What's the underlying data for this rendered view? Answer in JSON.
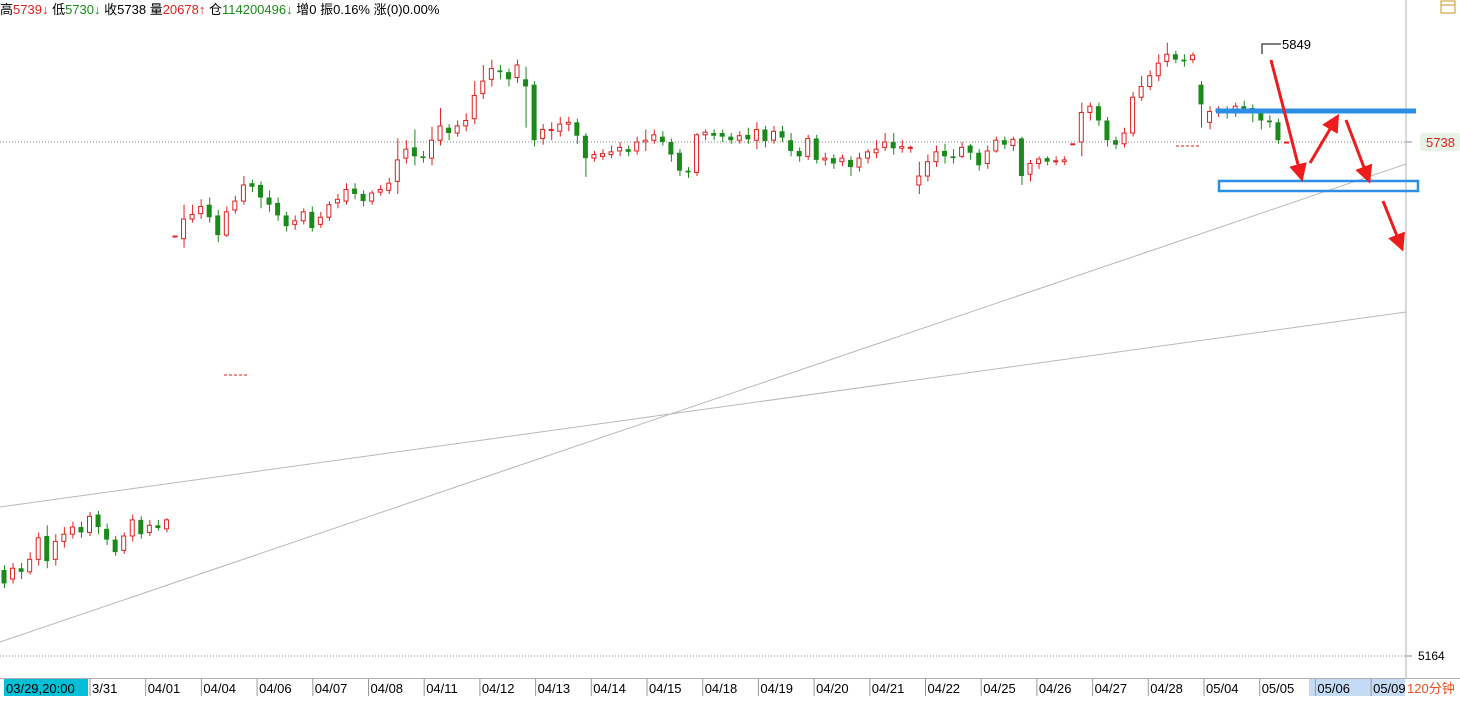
{
  "info_bar": {
    "high_label": "高",
    "high_value": "5739",
    "high_arrow": "↓",
    "low_label": "低",
    "low_value": "5730",
    "low_arrow": "↓",
    "close_label": "收",
    "close_value": "5738",
    "volume_label": "量",
    "volume_value": "20678",
    "volume_arrow": "↑",
    "oi_label": "仓",
    "oi_value": "114200496",
    "oi_arrow": "↓",
    "increase_label": "增",
    "increase_value": "0",
    "amplitude_label": "振",
    "amplitude_value": "0.16%",
    "change_label": "涨",
    "change_value": "(0)0.00%"
  },
  "period_label": "120分钟",
  "cursor_time_label": "03/29,20:00",
  "price_axis": {
    "current_price_label": "5738",
    "bottom_label": "5164"
  },
  "colors": {
    "up": "#e0201e",
    "down": "#1a8a1a",
    "annotation_blue": "#2b8fe6",
    "annotation_red": "#ee1c1c",
    "trendline": "#b8b8b8",
    "time_highlight": "#00c0d8",
    "period_text": "#e8501e"
  },
  "chart_data": {
    "type": "candlestick",
    "title": "",
    "peak_label": "5849",
    "y_axis_labels": [
      "5738",
      "5164"
    ],
    "x_axis_labels": [
      "3/31",
      "04/01",
      "04/04",
      "04/06",
      "04/07",
      "04/08",
      "04/11",
      "04/12",
      "04/13",
      "04/14",
      "04/15",
      "04/18",
      "04/19",
      "04/20",
      "04/21",
      "04/22",
      "04/25",
      "04/26",
      "04/27",
      "04/28",
      "05/04",
      "05/05",
      "05/06",
      "05/09"
    ],
    "reference_prices": {
      "last_close": 5738,
      "axis_min_label": 5164,
      "peak": 5849
    },
    "approx_ylim": [
      5164,
      5885
    ],
    "candles": [
      [
        5260,
        5245,
        5265,
        5240
      ],
      [
        5250,
        5262,
        5268,
        5245
      ],
      [
        5262,
        5258,
        5268,
        5250
      ],
      [
        5258,
        5272,
        5280,
        5255
      ],
      [
        5272,
        5296,
        5302,
        5265
      ],
      [
        5298,
        5270,
        5310,
        5262
      ],
      [
        5272,
        5292,
        5300,
        5265
      ],
      [
        5292,
        5300,
        5308,
        5285
      ],
      [
        5300,
        5308,
        5314,
        5295
      ],
      [
        5308,
        5302,
        5314,
        5296
      ],
      [
        5302,
        5320,
        5325,
        5298
      ],
      [
        5322,
        5308,
        5326,
        5300
      ],
      [
        5306,
        5294,
        5312,
        5288
      ],
      [
        5294,
        5280,
        5298,
        5276
      ],
      [
        5282,
        5298,
        5302,
        5278
      ],
      [
        5298,
        5316,
        5322,
        5292
      ],
      [
        5316,
        5300,
        5320,
        5295
      ],
      [
        5302,
        5310,
        5316,
        5298
      ],
      [
        5310,
        5307,
        5316,
        5304
      ],
      [
        5306,
        5316,
        5318,
        5302
      ],
      [
        5633,
        5633,
        5633,
        5633
      ],
      [
        5630,
        5652,
        5668,
        5620
      ],
      [
        5652,
        5657,
        5668,
        5648
      ],
      [
        5658,
        5666,
        5674,
        5652
      ],
      [
        5668,
        5654,
        5676,
        5648
      ],
      [
        5656,
        5634,
        5662,
        5626
      ],
      [
        5634,
        5660,
        5666,
        5632
      ],
      [
        5662,
        5672,
        5678,
        5658
      ],
      [
        5672,
        5690,
        5700,
        5668
      ],
      [
        5692,
        5688,
        5696,
        5682
      ],
      [
        5690,
        5676,
        5694,
        5664
      ],
      [
        5676,
        5668,
        5684,
        5660
      ],
      [
        5670,
        5656,
        5676,
        5650
      ],
      [
        5656,
        5644,
        5660,
        5638
      ],
      [
        5646,
        5650,
        5656,
        5640
      ],
      [
        5650,
        5660,
        5664,
        5646
      ],
      [
        5660,
        5642,
        5666,
        5638
      ],
      [
        5646,
        5654,
        5660,
        5642
      ],
      [
        5654,
        5668,
        5672,
        5650
      ],
      [
        5670,
        5674,
        5680,
        5664
      ],
      [
        5672,
        5685,
        5692,
        5668
      ],
      [
        5686,
        5680,
        5692,
        5674
      ],
      [
        5680,
        5672,
        5684,
        5666
      ],
      [
        5672,
        5681,
        5684,
        5668
      ],
      [
        5682,
        5685,
        5690,
        5678
      ],
      [
        5684,
        5692,
        5698,
        5680
      ],
      [
        5694,
        5718,
        5742,
        5680
      ],
      [
        5720,
        5730,
        5740,
        5714
      ],
      [
        5732,
        5722,
        5752,
        5712
      ],
      [
        5722,
        5720,
        5728,
        5715
      ],
      [
        5720,
        5740,
        5755,
        5712
      ],
      [
        5740,
        5756,
        5776,
        5734
      ],
      [
        5754,
        5748,
        5758,
        5740
      ],
      [
        5748,
        5756,
        5762,
        5744
      ],
      [
        5756,
        5762,
        5770,
        5750
      ],
      [
        5764,
        5790,
        5806,
        5758
      ],
      [
        5792,
        5806,
        5824,
        5786
      ],
      [
        5808,
        5820,
        5830,
        5800
      ],
      [
        5818,
        5816,
        5824,
        5808
      ],
      [
        5816,
        5808,
        5820,
        5800
      ],
      [
        5810,
        5824,
        5830,
        5804
      ],
      [
        5808,
        5800,
        5822,
        5754
      ],
      [
        5802,
        5740,
        5806,
        5733
      ],
      [
        5742,
        5752,
        5758,
        5735
      ],
      [
        5752,
        5752,
        5760,
        5740
      ],
      [
        5750,
        5758,
        5766,
        5744
      ],
      [
        5758,
        5760,
        5766,
        5750
      ],
      [
        5760,
        5745,
        5764,
        5736
      ],
      [
        5745,
        5720,
        5748,
        5699
      ],
      [
        5720,
        5724,
        5728,
        5716
      ],
      [
        5722,
        5725,
        5730,
        5718
      ],
      [
        5724,
        5727,
        5734,
        5720
      ],
      [
        5728,
        5732,
        5738,
        5722
      ],
      [
        5730,
        5727,
        5734,
        5722
      ],
      [
        5728,
        5738,
        5744,
        5724
      ],
      [
        5738,
        5740,
        5752,
        5728
      ],
      [
        5740,
        5746,
        5752,
        5736
      ],
      [
        5744,
        5738,
        5750,
        5734
      ],
      [
        5738,
        5724,
        5742,
        5716
      ],
      [
        5726,
        5706,
        5730,
        5700
      ],
      [
        5706,
        5704,
        5710,
        5698
      ],
      [
        5704,
        5746,
        5748,
        5700
      ],
      [
        5746,
        5749,
        5752,
        5740
      ],
      [
        5748,
        5745,
        5752,
        5740
      ],
      [
        5748,
        5744,
        5752,
        5738
      ],
      [
        5744,
        5740,
        5748,
        5736
      ],
      [
        5740,
        5745,
        5750,
        5736
      ],
      [
        5746,
        5741,
        5754,
        5736
      ],
      [
        5740,
        5752,
        5760,
        5730
      ],
      [
        5752,
        5739,
        5756,
        5732
      ],
      [
        5740,
        5750,
        5756,
        5736
      ],
      [
        5750,
        5743,
        5756,
        5738
      ],
      [
        5740,
        5728,
        5748,
        5722
      ],
      [
        5728,
        5722,
        5732,
        5716
      ],
      [
        5722,
        5742,
        5746,
        5718
      ],
      [
        5742,
        5718,
        5746,
        5714
      ],
      [
        5718,
        5720,
        5726,
        5712
      ],
      [
        5720,
        5714,
        5724,
        5708
      ],
      [
        5716,
        5720,
        5724,
        5711
      ],
      [
        5718,
        5710,
        5722,
        5700
      ],
      [
        5710,
        5720,
        5726,
        5705
      ],
      [
        5720,
        5727,
        5730,
        5714
      ],
      [
        5726,
        5730,
        5740,
        5720
      ],
      [
        5732,
        5738,
        5748,
        5728
      ],
      [
        5738,
        5731,
        5748,
        5724
      ],
      [
        5731,
        5733,
        5740,
        5726
      ],
      [
        5732,
        5732,
        5734,
        5726
      ],
      [
        5690,
        5700,
        5716,
        5680
      ],
      [
        5700,
        5716,
        5724,
        5694
      ],
      [
        5716,
        5727,
        5734,
        5710
      ],
      [
        5728,
        5722,
        5736,
        5714
      ],
      [
        5722,
        5720,
        5730,
        5714
      ],
      [
        5722,
        5732,
        5738,
        5720
      ],
      [
        5734,
        5726,
        5736,
        5718
      ],
      [
        5726,
        5712,
        5730,
        5706
      ],
      [
        5714,
        5728,
        5734,
        5708
      ],
      [
        5728,
        5740,
        5744,
        5726
      ],
      [
        5740,
        5735,
        5744,
        5730
      ],
      [
        5734,
        5741,
        5744,
        5728
      ],
      [
        5742,
        5700,
        5744,
        5690
      ],
      [
        5702,
        5714,
        5718,
        5694
      ],
      [
        5714,
        5719,
        5722,
        5708
      ],
      [
        5720,
        5716,
        5722,
        5712
      ],
      [
        5716,
        5717,
        5722,
        5712
      ],
      [
        5716,
        5718,
        5722,
        5712
      ],
      [
        5736,
        5736,
        5736,
        5736
      ],
      [
        5738,
        5771,
        5782,
        5722
      ],
      [
        5771,
        5778,
        5782,
        5762
      ],
      [
        5778,
        5762,
        5782,
        5756
      ],
      [
        5762,
        5740,
        5766,
        5733
      ],
      [
        5740,
        5735,
        5744,
        5730
      ],
      [
        5736,
        5748,
        5754,
        5732
      ],
      [
        5748,
        5788,
        5794,
        5744
      ],
      [
        5788,
        5800,
        5812,
        5784
      ],
      [
        5800,
        5812,
        5818,
        5796
      ],
      [
        5812,
        5826,
        5836,
        5806
      ],
      [
        5828,
        5836,
        5849,
        5822
      ],
      [
        5836,
        5830,
        5840,
        5826
      ],
      [
        5830,
        5828,
        5836,
        5822
      ],
      [
        5830,
        5835,
        5838,
        5826
      ],
      [
        5802,
        5780,
        5806,
        5754
      ],
      [
        5760,
        5772,
        5778,
        5752
      ],
      [
        5772,
        5775,
        5778,
        5766
      ],
      [
        5774,
        5770,
        5778,
        5764
      ],
      [
        5772,
        5778,
        5782,
        5766
      ],
      [
        5778,
        5775,
        5784,
        5770
      ],
      [
        5776,
        5770,
        5780,
        5760
      ],
      [
        5770,
        5762,
        5774,
        5752
      ],
      [
        5762,
        5760,
        5768,
        5754
      ],
      [
        5760,
        5740,
        5764,
        5736
      ],
      [
        5738,
        5738,
        5738,
        5738
      ]
    ],
    "candle_fields": [
      "open",
      "close",
      "high",
      "low"
    ],
    "annotations": {
      "resistance_zone_price": 5780,
      "support_zone_price": 5705,
      "trendlines": 2
    }
  }
}
